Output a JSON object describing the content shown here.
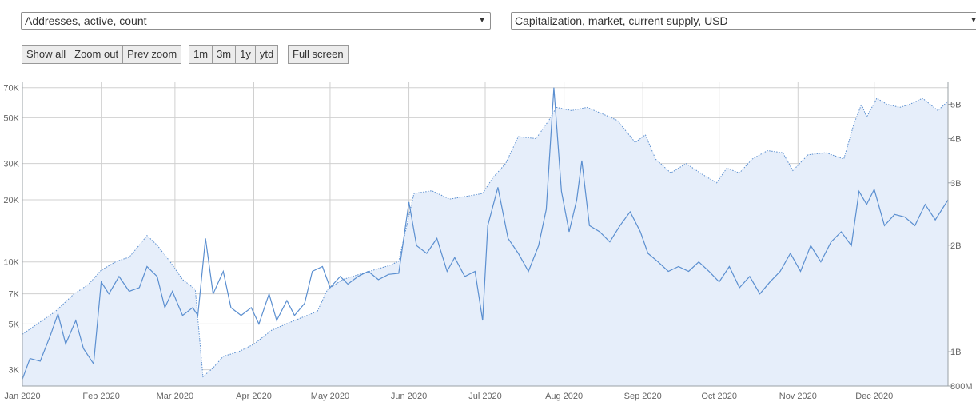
{
  "selectors": {
    "left_metric": "Addresses, active, count",
    "right_metric": "Capitalization, market, current supply, USD"
  },
  "zoom_buttons": [
    "Show all",
    "Zoom out",
    "Prev zoom"
  ],
  "range_buttons": [
    "1m",
    "3m",
    "1y",
    "ytd"
  ],
  "fullscreen_label": "Full screen",
  "icons": {
    "dropdown": "chevron-down-icon"
  },
  "colors": {
    "series_line": "#5b8fd0",
    "area_fill": "#e6eefa",
    "grid": "#d0d0d0",
    "axis": "#9aa0a6"
  },
  "chart_data": {
    "type": "line",
    "x_labels": [
      "Jan 2020",
      "Feb 2020",
      "Mar 2020",
      "Apr 2020",
      "May 2020",
      "Jun 2020",
      "Jul 2020",
      "Aug 2020",
      "Sep 2020",
      "Oct 2020",
      "Nov 2020",
      "Dec 2020"
    ],
    "x_range": [
      "2020-01-01",
      "2020-12-30"
    ],
    "grid": true,
    "left_axis": {
      "scale": "log",
      "range": [
        2500,
        75000
      ],
      "ticks": [
        {
          "v": 3000,
          "label": "3K"
        },
        {
          "v": 5000,
          "label": "5K"
        },
        {
          "v": 7000,
          "label": "7K"
        },
        {
          "v": 10000,
          "label": "10K"
        },
        {
          "v": 20000,
          "label": "20K"
        },
        {
          "v": 30000,
          "label": "30K"
        },
        {
          "v": 50000,
          "label": "50K"
        },
        {
          "v": 70000,
          "label": "70K"
        }
      ]
    },
    "right_axis": {
      "scale": "log",
      "range": [
        800000000,
        5800000000
      ],
      "ticks": [
        {
          "v": 800000000,
          "label": "800M"
        },
        {
          "v": 1000000000,
          "label": "1B"
        },
        {
          "v": 2000000000,
          "label": "2B"
        },
        {
          "v": 3000000000,
          "label": "3B"
        },
        {
          "v": 4000000000,
          "label": "4B"
        },
        {
          "v": 5000000000,
          "label": "5B"
        }
      ]
    },
    "series": [
      {
        "name": "Addresses, active, count",
        "axis": "left",
        "style": "solid line",
        "points": [
          [
            "2020-01-01",
            2700
          ],
          [
            "2020-01-04",
            3400
          ],
          [
            "2020-01-08",
            3300
          ],
          [
            "2020-01-12",
            4400
          ],
          [
            "2020-01-15",
            5600
          ],
          [
            "2020-01-18",
            4000
          ],
          [
            "2020-01-22",
            5200
          ],
          [
            "2020-01-25",
            3800
          ],
          [
            "2020-01-29",
            3200
          ],
          [
            "2020-02-01",
            8000
          ],
          [
            "2020-02-04",
            7000
          ],
          [
            "2020-02-08",
            8500
          ],
          [
            "2020-02-12",
            7200
          ],
          [
            "2020-02-16",
            7500
          ],
          [
            "2020-02-19",
            9500
          ],
          [
            "2020-02-23",
            8500
          ],
          [
            "2020-02-26",
            6000
          ],
          [
            "2020-02-29",
            7200
          ],
          [
            "2020-03-04",
            5500
          ],
          [
            "2020-03-08",
            6000
          ],
          [
            "2020-03-10",
            5500
          ],
          [
            "2020-03-13",
            13000
          ],
          [
            "2020-03-16",
            7000
          ],
          [
            "2020-03-20",
            9000
          ],
          [
            "2020-03-23",
            6000
          ],
          [
            "2020-03-27",
            5500
          ],
          [
            "2020-03-31",
            6000
          ],
          [
            "2020-04-03",
            5000
          ],
          [
            "2020-04-07",
            7000
          ],
          [
            "2020-04-10",
            5200
          ],
          [
            "2020-04-14",
            6500
          ],
          [
            "2020-04-17",
            5500
          ],
          [
            "2020-04-21",
            6300
          ],
          [
            "2020-04-24",
            9000
          ],
          [
            "2020-04-28",
            9500
          ],
          [
            "2020-05-01",
            7500
          ],
          [
            "2020-05-05",
            8500
          ],
          [
            "2020-05-08",
            7800
          ],
          [
            "2020-05-12",
            8500
          ],
          [
            "2020-05-16",
            9000
          ],
          [
            "2020-05-20",
            8200
          ],
          [
            "2020-05-24",
            8700
          ],
          [
            "2020-05-28",
            8800
          ],
          [
            "2020-06-01",
            19500
          ],
          [
            "2020-06-04",
            12000
          ],
          [
            "2020-06-08",
            11000
          ],
          [
            "2020-06-12",
            13000
          ],
          [
            "2020-06-16",
            9000
          ],
          [
            "2020-06-19",
            10500
          ],
          [
            "2020-06-23",
            8500
          ],
          [
            "2020-06-27",
            9000
          ],
          [
            "2020-06-30",
            5200
          ],
          [
            "2020-07-02",
            15000
          ],
          [
            "2020-07-06",
            23000
          ],
          [
            "2020-07-10",
            13000
          ],
          [
            "2020-07-14",
            11000
          ],
          [
            "2020-07-18",
            9000
          ],
          [
            "2020-07-22",
            12000
          ],
          [
            "2020-07-25",
            18000
          ],
          [
            "2020-07-28",
            70000
          ],
          [
            "2020-07-31",
            22000
          ],
          [
            "2020-08-03",
            14000
          ],
          [
            "2020-08-06",
            20000
          ],
          [
            "2020-08-08",
            31000
          ],
          [
            "2020-08-11",
            15000
          ],
          [
            "2020-08-15",
            14000
          ],
          [
            "2020-08-19",
            12500
          ],
          [
            "2020-08-23",
            15000
          ],
          [
            "2020-08-27",
            17500
          ],
          [
            "2020-08-31",
            14000
          ],
          [
            "2020-09-03",
            11000
          ],
          [
            "2020-09-07",
            10000
          ],
          [
            "2020-09-11",
            9000
          ],
          [
            "2020-09-15",
            9500
          ],
          [
            "2020-09-19",
            9000
          ],
          [
            "2020-09-23",
            10000
          ],
          [
            "2020-09-27",
            9000
          ],
          [
            "2020-10-01",
            8000
          ],
          [
            "2020-10-05",
            9500
          ],
          [
            "2020-10-09",
            7500
          ],
          [
            "2020-10-13",
            8500
          ],
          [
            "2020-10-17",
            7000
          ],
          [
            "2020-10-21",
            8000
          ],
          [
            "2020-10-25",
            9000
          ],
          [
            "2020-10-29",
            11000
          ],
          [
            "2020-11-02",
            9000
          ],
          [
            "2020-11-06",
            12000
          ],
          [
            "2020-11-10",
            10000
          ],
          [
            "2020-11-14",
            12500
          ],
          [
            "2020-11-18",
            14000
          ],
          [
            "2020-11-22",
            12000
          ],
          [
            "2020-11-25",
            22000
          ],
          [
            "2020-11-28",
            19000
          ],
          [
            "2020-12-01",
            22500
          ],
          [
            "2020-12-05",
            15000
          ],
          [
            "2020-12-09",
            17000
          ],
          [
            "2020-12-13",
            16500
          ],
          [
            "2020-12-17",
            15000
          ],
          [
            "2020-12-21",
            19000
          ],
          [
            "2020-12-25",
            16000
          ],
          [
            "2020-12-30",
            20000
          ]
        ]
      },
      {
        "name": "Capitalization, market, current supply, USD",
        "axis": "right",
        "style": "dotted line with filled area",
        "points": [
          [
            "2020-01-01",
            1120000000
          ],
          [
            "2020-01-07",
            1200000000
          ],
          [
            "2020-01-14",
            1300000000
          ],
          [
            "2020-01-21",
            1450000000
          ],
          [
            "2020-01-27",
            1550000000
          ],
          [
            "2020-02-01",
            1700000000
          ],
          [
            "2020-02-07",
            1800000000
          ],
          [
            "2020-02-12",
            1850000000
          ],
          [
            "2020-02-16",
            2000000000
          ],
          [
            "2020-02-19",
            2130000000
          ],
          [
            "2020-02-23",
            2000000000
          ],
          [
            "2020-02-28",
            1800000000
          ],
          [
            "2020-03-04",
            1600000000
          ],
          [
            "2020-03-09",
            1500000000
          ],
          [
            "2020-03-12",
            850000000
          ],
          [
            "2020-03-16",
            900000000
          ],
          [
            "2020-03-20",
            970000000
          ],
          [
            "2020-03-26",
            1000000000
          ],
          [
            "2020-04-01",
            1050000000
          ],
          [
            "2020-04-08",
            1150000000
          ],
          [
            "2020-04-14",
            1200000000
          ],
          [
            "2020-04-20",
            1250000000
          ],
          [
            "2020-04-26",
            1300000000
          ],
          [
            "2020-04-30",
            1500000000
          ],
          [
            "2020-05-06",
            1600000000
          ],
          [
            "2020-05-12",
            1650000000
          ],
          [
            "2020-05-18",
            1700000000
          ],
          [
            "2020-05-24",
            1750000000
          ],
          [
            "2020-05-28",
            1800000000
          ],
          [
            "2020-06-03",
            2800000000
          ],
          [
            "2020-06-10",
            2850000000
          ],
          [
            "2020-06-17",
            2700000000
          ],
          [
            "2020-06-24",
            2750000000
          ],
          [
            "2020-06-30",
            2800000000
          ],
          [
            "2020-07-04",
            3100000000
          ],
          [
            "2020-07-09",
            3400000000
          ],
          [
            "2020-07-14",
            4050000000
          ],
          [
            "2020-07-21",
            4000000000
          ],
          [
            "2020-07-26",
            4500000000
          ],
          [
            "2020-07-29",
            4900000000
          ],
          [
            "2020-08-04",
            4800000000
          ],
          [
            "2020-08-10",
            4900000000
          ],
          [
            "2020-08-16",
            4700000000
          ],
          [
            "2020-08-22",
            4500000000
          ],
          [
            "2020-08-29",
            3900000000
          ],
          [
            "2020-09-02",
            4100000000
          ],
          [
            "2020-09-06",
            3500000000
          ],
          [
            "2020-09-12",
            3200000000
          ],
          [
            "2020-09-18",
            3400000000
          ],
          [
            "2020-09-25",
            3150000000
          ],
          [
            "2020-09-30",
            3000000000
          ],
          [
            "2020-10-04",
            3300000000
          ],
          [
            "2020-10-09",
            3200000000
          ],
          [
            "2020-10-14",
            3500000000
          ],
          [
            "2020-10-20",
            3700000000
          ],
          [
            "2020-10-26",
            3650000000
          ],
          [
            "2020-10-30",
            3250000000
          ],
          [
            "2020-11-05",
            3600000000
          ],
          [
            "2020-11-12",
            3650000000
          ],
          [
            "2020-11-19",
            3500000000
          ],
          [
            "2020-11-23",
            4400000000
          ],
          [
            "2020-11-26",
            5000000000
          ],
          [
            "2020-11-28",
            4600000000
          ],
          [
            "2020-12-02",
            5200000000
          ],
          [
            "2020-12-06",
            5000000000
          ],
          [
            "2020-12-11",
            4900000000
          ],
          [
            "2020-12-15",
            5000000000
          ],
          [
            "2020-12-20",
            5200000000
          ],
          [
            "2020-12-26",
            4800000000
          ],
          [
            "2020-12-30",
            5100000000
          ]
        ]
      }
    ]
  }
}
